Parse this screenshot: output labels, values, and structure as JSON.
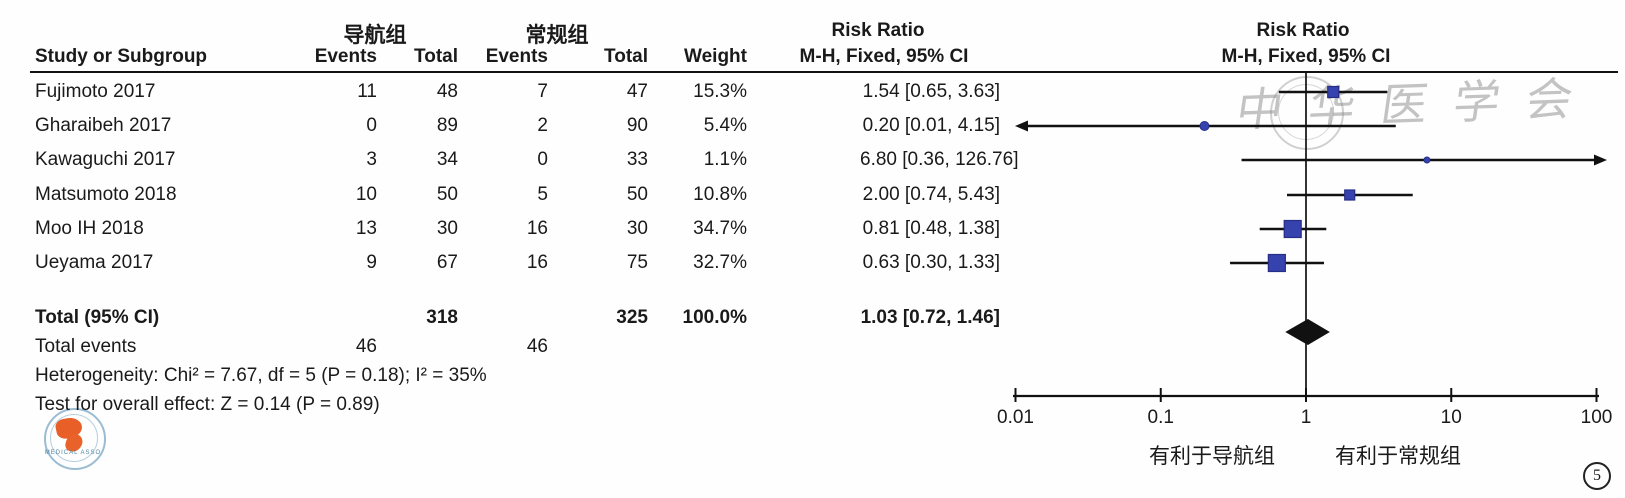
{
  "header": {
    "group1": "导航组",
    "group2": "常规组",
    "study": "Study or Subgroup",
    "events": "Events",
    "total": "Total",
    "weight": "Weight",
    "risk_ratio": "Risk Ratio",
    "mh_ci": "M-H, Fixed, 95% CI"
  },
  "chart_data": {
    "type": "forest",
    "effect_measure": "Risk Ratio",
    "method": "M-H, Fixed, 95% CI",
    "x_ticks": [
      0.01,
      0.1,
      1,
      10,
      100
    ],
    "x_range": [
      0.01,
      100
    ],
    "x_scale": "log",
    "marker_color": "#3642ae",
    "marker_edge_color": "#272e86",
    "diamond_color": "#111111",
    "studies": [
      {
        "name": "Fujimoto 2017",
        "events1": 11,
        "total1": 48,
        "events2": 7,
        "total2": 47,
        "weight": "15.3%",
        "weight_pct": 15.3,
        "rr": 1.54,
        "low": 0.65,
        "high": 3.63,
        "ci_label": "1.54 [0.65, 3.63]"
      },
      {
        "name": "Gharaibeh 2017",
        "events1": 0,
        "total1": 89,
        "events2": 2,
        "total2": 90,
        "weight": "5.4%",
        "weight_pct": 5.4,
        "rr": 0.2,
        "low": 0.01,
        "high": 4.15,
        "ci_label": "0.20 [0.01, 4.15]"
      },
      {
        "name": "Kawaguchi 2017",
        "events1": 3,
        "total1": 34,
        "events2": 0,
        "total2": 33,
        "weight": "1.1%",
        "weight_pct": 1.1,
        "rr": 6.8,
        "low": 0.36,
        "high": 126.76,
        "ci_label": "6.80 [0.36, 126.76]"
      },
      {
        "name": "Matsumoto 2018",
        "events1": 10,
        "total1": 50,
        "events2": 5,
        "total2": 50,
        "weight": "10.8%",
        "weight_pct": 10.8,
        "rr": 2.0,
        "low": 0.74,
        "high": 5.43,
        "ci_label": "2.00 [0.74, 5.43]"
      },
      {
        "name": "Moo IH 2018",
        "events1": 13,
        "total1": 30,
        "events2": 16,
        "total2": 30,
        "weight": "34.7%",
        "weight_pct": 34.7,
        "rr": 0.81,
        "low": 0.48,
        "high": 1.38,
        "ci_label": "0.81 [0.48, 1.38]"
      },
      {
        "name": "Ueyama 2017",
        "events1": 9,
        "total1": 67,
        "events2": 16,
        "total2": 75,
        "weight": "32.7%",
        "weight_pct": 32.7,
        "rr": 0.63,
        "low": 0.3,
        "high": 1.33,
        "ci_label": "0.63 [0.30, 1.33]"
      }
    ],
    "total": {
      "label": "Total (95% CI)",
      "total1": 318,
      "total2": 325,
      "weight": "100.0%",
      "rr": 1.03,
      "low": 0.72,
      "high": 1.46,
      "ci_label": "1.03 [0.72, 1.46]"
    },
    "total_events": {
      "label": "Total events",
      "events1": 46,
      "events2": 46
    },
    "heterogeneity": "Heterogeneity: Chi² = 7.67, df = 5 (P = 0.18); I² = 35%",
    "overall_effect": "Test for overall effect: Z = 0.14 (P = 0.89)",
    "favors_left": "有利于导航组",
    "favors_right": "有利于常规组"
  },
  "watermark": {
    "calligraphy": "中华医学会",
    "logo_text": "MEDICAL ASSO"
  },
  "figure_number": "5"
}
